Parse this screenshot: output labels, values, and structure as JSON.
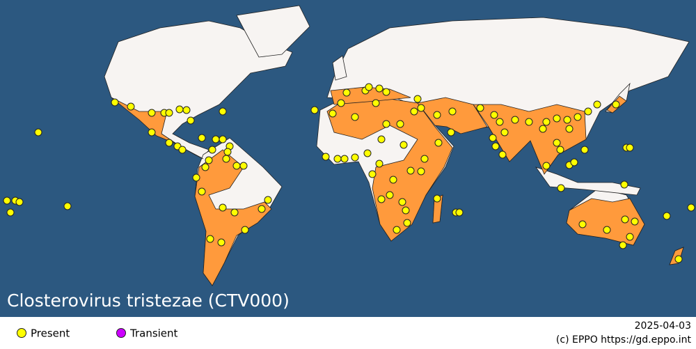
{
  "map": {
    "title": "Closterovirus tristezae (CTV000)"
  },
  "legend": [
    {
      "label": "Present",
      "color": "#ffff00"
    },
    {
      "label": "Transient",
      "color": "#cc00ff"
    }
  ],
  "footer": {
    "date": "2025-04-03",
    "credit": "(c) EPPO https://gd.eppo.int"
  }
}
